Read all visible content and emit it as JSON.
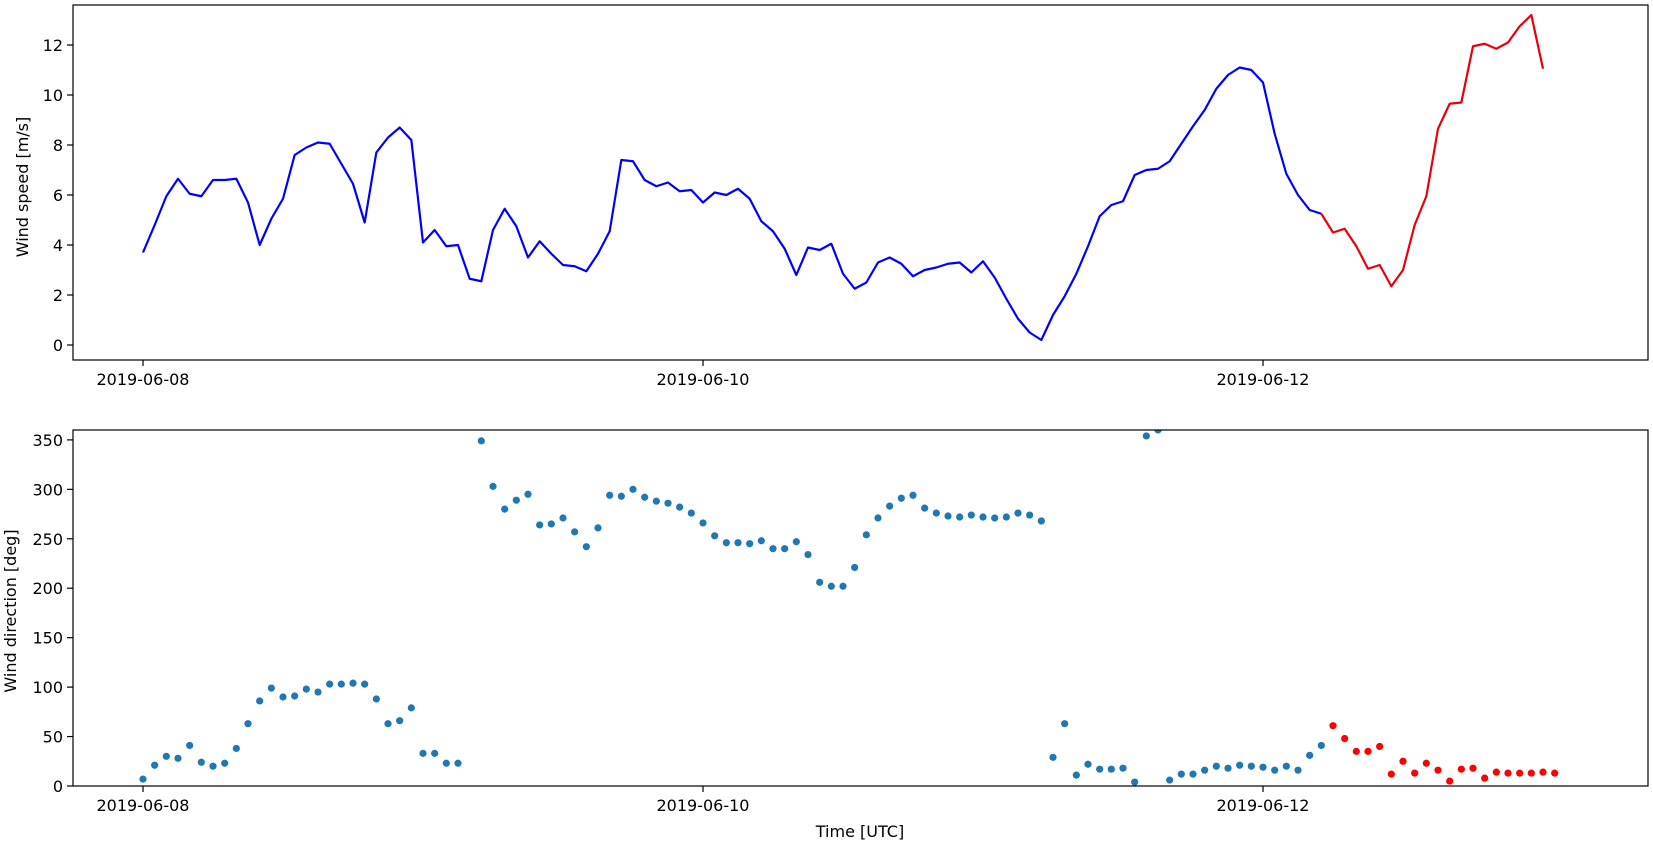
{
  "chart_data": [
    {
      "type": "line",
      "title": "",
      "xlabel": "",
      "ylabel": "Wind speed  [m/s]",
      "x_type": "time",
      "xlim": [
        "2019-06-07T18:00",
        "2019-06-13T09:00"
      ],
      "ylim": [
        -0.6,
        13.6
      ],
      "x_ticks": [
        "2019-06-08",
        "2019-06-10",
        "2019-06-12"
      ],
      "y_ticks": [
        0,
        2,
        4,
        6,
        8,
        10,
        12
      ],
      "grid": false,
      "legend": "none",
      "series": [
        {
          "color": "#0000ff",
          "x_start": "2019-06-08T00:00",
          "step_hours": 1,
          "values": [
            3.7,
            4.8,
            5.95,
            6.65,
            6.05,
            5.95,
            6.6,
            6.6,
            6.65,
            5.7,
            4.0,
            5.05,
            5.85,
            7.6,
            7.9,
            8.1,
            8.05,
            7.25,
            6.45,
            4.9,
            7.7,
            8.3,
            8.7,
            8.2,
            4.1,
            4.6,
            3.95,
            4.0,
            2.65,
            2.55,
            4.6,
            5.45,
            4.75,
            3.5,
            4.15,
            3.65,
            3.2,
            3.15,
            2.95,
            3.65,
            4.55,
            7.4,
            7.35,
            6.6,
            6.35,
            6.5,
            6.15,
            6.2,
            5.7,
            6.1,
            6.0,
            6.25,
            5.85,
            4.95,
            4.55,
            3.85,
            2.8,
            3.9,
            3.8,
            4.05,
            2.85,
            2.25,
            2.5,
            3.3,
            3.5,
            3.25,
            2.75,
            3.0,
            3.1,
            3.25,
            3.3,
            2.9,
            3.35,
            2.7,
            1.85,
            1.05,
            0.5,
            0.2,
            1.2,
            1.95,
            2.85,
            3.95,
            5.15,
            5.6,
            5.75,
            6.8,
            7.0,
            7.05,
            7.35,
            8.05,
            8.75,
            9.4,
            10.25,
            10.8,
            11.1,
            11.0,
            10.5,
            8.45,
            6.85,
            6.0,
            5.4,
            5.25
          ]
        },
        {
          "color": "#e8000b",
          "x_start": "2019-06-12T05:00",
          "step_hours": 1,
          "values": [
            5.25,
            4.5,
            4.65,
            3.95,
            3.05,
            3.2,
            2.35,
            3.0,
            4.8,
            5.95,
            8.65,
            9.65,
            9.7,
            11.95,
            12.05,
            11.85,
            12.1,
            12.75,
            13.2,
            11.05
          ]
        }
      ]
    },
    {
      "type": "scatter",
      "title": "",
      "xlabel": "Time  [UTC]",
      "ylabel": "Wind direction  [deg]",
      "x_type": "time",
      "xlim": [
        "2019-06-07T18:00",
        "2019-06-13T09:00"
      ],
      "ylim": [
        0,
        360
      ],
      "x_ticks": [
        "2019-06-08",
        "2019-06-10",
        "2019-06-12"
      ],
      "y_ticks": [
        0,
        50,
        100,
        150,
        200,
        250,
        300,
        350
      ],
      "grid": false,
      "legend": "none",
      "series": [
        {
          "color": "#1f77b4",
          "x_start": "2019-06-08T00:00",
          "step_hours": 1,
          "values": [
            7,
            21,
            30,
            28,
            41,
            24,
            20,
            23,
            38,
            63,
            86,
            99,
            90,
            91,
            98,
            95,
            103,
            103,
            104,
            103,
            88,
            63,
            66,
            79,
            33,
            33,
            23,
            23,
            364,
            349,
            303,
            280,
            289,
            295,
            264,
            265,
            271,
            257,
            242,
            261,
            294,
            293,
            300,
            292,
            288,
            286,
            282,
            276,
            266,
            253,
            246,
            246,
            245,
            248,
            240,
            240,
            247,
            234,
            206,
            202,
            202,
            221,
            254,
            271,
            283,
            291,
            294,
            281,
            276,
            273,
            272,
            274,
            272,
            271,
            272,
            276,
            274,
            268,
            29,
            63,
            11,
            22,
            17,
            17,
            18,
            4,
            354,
            360,
            6,
            12,
            12,
            16,
            20,
            18,
            21,
            20,
            19,
            16,
            20,
            16,
            31,
            41
          ]
        },
        {
          "color": "#ff0000",
          "x_start": "2019-06-12T06:00",
          "step_hours": 1,
          "values": [
            61,
            48,
            35,
            35,
            40,
            12,
            25,
            13,
            23,
            16,
            5,
            17,
            18,
            8,
            14,
            13,
            13,
            13,
            14,
            13
          ]
        }
      ]
    }
  ]
}
